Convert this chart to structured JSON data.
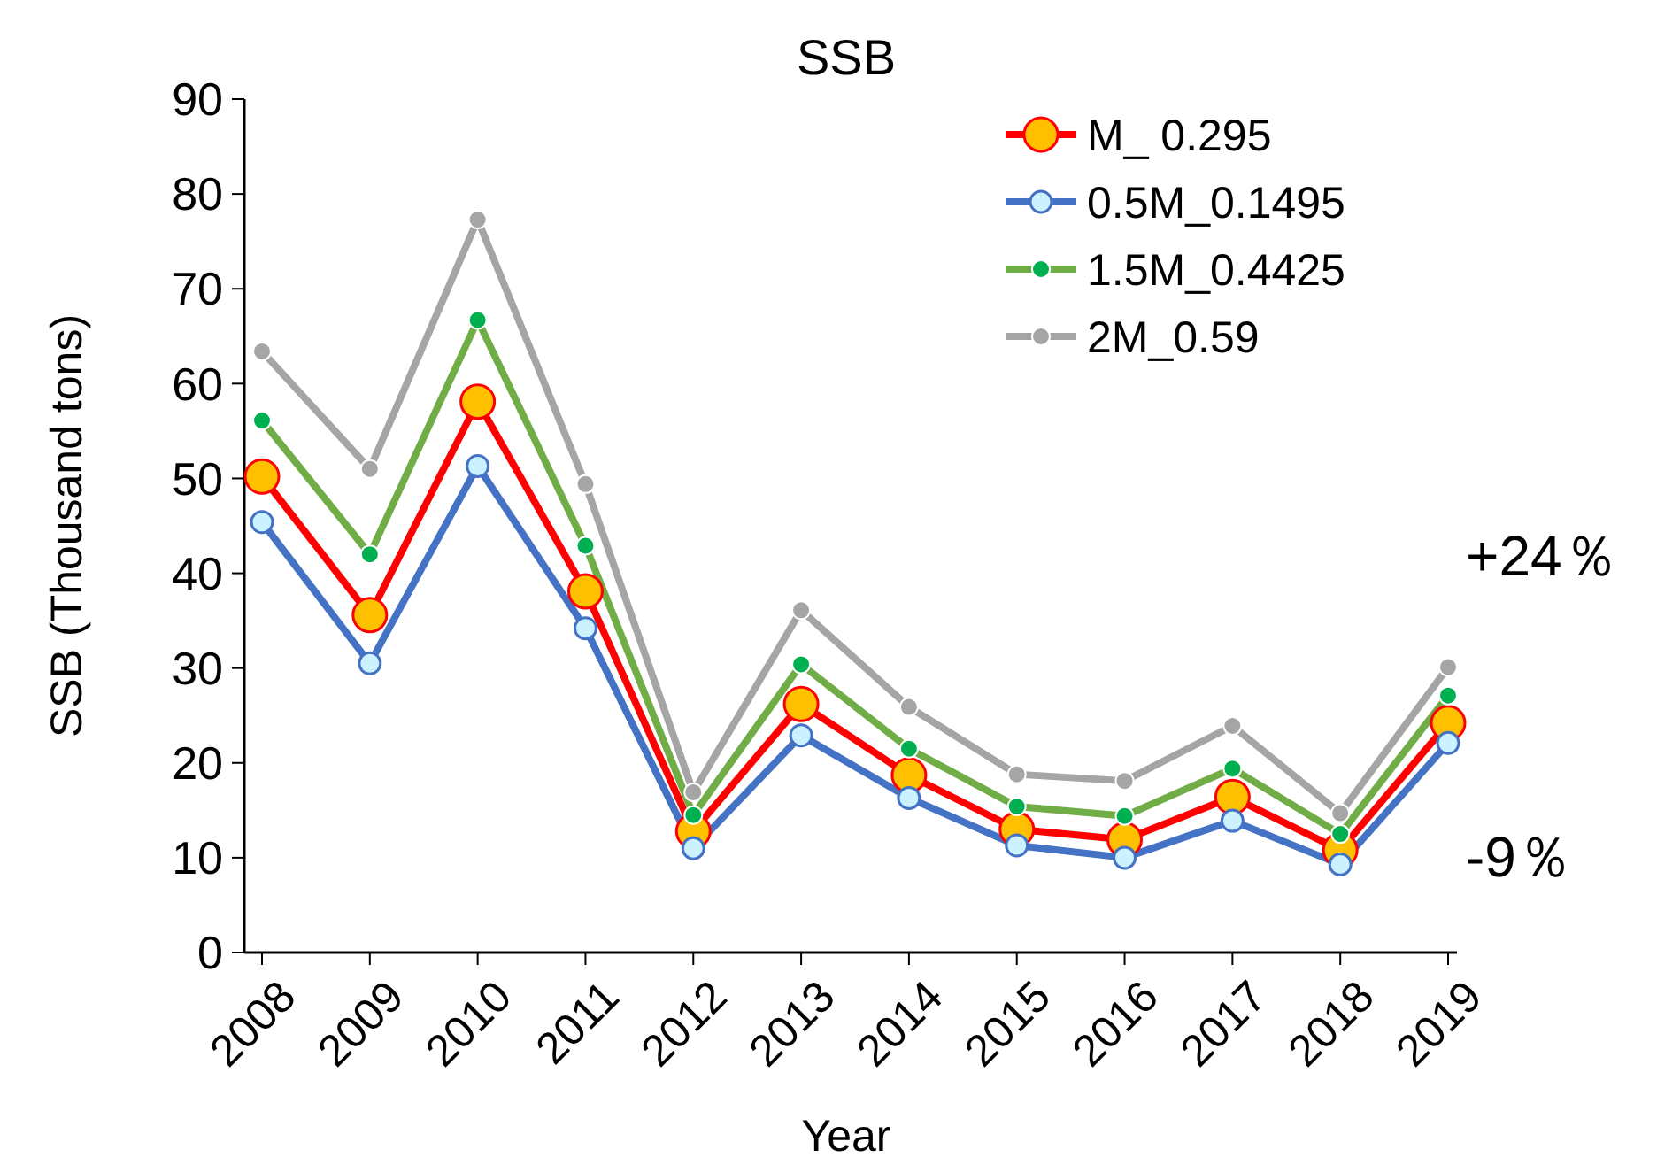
{
  "chart_data": {
    "type": "line",
    "title": "SSB",
    "xlabel": "Year",
    "ylabel": "SSB (Thousand tons)",
    "categories": [
      "2008",
      "2009",
      "2010",
      "2011",
      "2012",
      "2013",
      "2014",
      "2015",
      "2016",
      "2017",
      "2018",
      "2019"
    ],
    "series": [
      {
        "name": "M_ 0.295",
        "color": "#ff0000",
        "values": [
          50.2,
          35.6,
          58.1,
          38.1,
          12.8,
          26.2,
          18.7,
          13,
          11.9,
          16.4,
          10.8,
          24.2
        ]
      },
      {
        "name": "0.5M_0.1495",
        "color": "#4472c4",
        "values": [
          45.4,
          30.5,
          51.3,
          34.2,
          11,
          22.9,
          16.3,
          11.3,
          10,
          13.9,
          9.3,
          22.1
        ]
      },
      {
        "name": "1.5M_0.4425",
        "color": "#70ad47",
        "values": [
          56.1,
          42,
          66.7,
          42.9,
          14.5,
          30.4,
          21.5,
          15.4,
          14.4,
          19.4,
          12.5,
          27.1
        ]
      },
      {
        "name": "2M_0.59",
        "color": "#a5a5a5",
        "values": [
          63.4,
          51,
          77.3,
          49.4,
          16.9,
          36.1,
          25.9,
          18.8,
          18.1,
          23.9,
          14.7,
          30.1
        ]
      }
    ],
    "ylim": [
      0,
      90
    ],
    "yticks": [
      0,
      10,
      20,
      30,
      40,
      50,
      60,
      70,
      80,
      90
    ],
    "grid": false,
    "legend": "top right",
    "marker": "circle",
    "annotations": [
      "+24％",
      "-9％"
    ]
  }
}
